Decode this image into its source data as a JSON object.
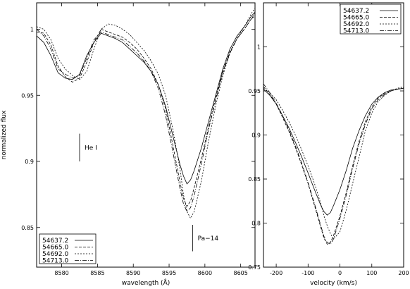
{
  "chart_data": [
    {
      "type": "line",
      "xlabel": "wavelength (Å)",
      "ylabel": "normalized flux",
      "xlim": [
        8576.5,
        8607
      ],
      "ylim": [
        0.82,
        1.02
      ],
      "xticks": [
        "8580",
        "8585",
        "8590",
        "8595",
        "8600",
        "8605"
      ],
      "yticks": [
        "0.85",
        "0.9",
        "0.95",
        "1"
      ],
      "legend": {
        "placement": "bottom-left",
        "entries": [
          "54637.2",
          "54665.0",
          "54692.0",
          "54713.0"
        ]
      },
      "annotations": [
        {
          "text": "He I",
          "x": 8582.5,
          "y_top": 0.921,
          "y_bottom": 0.9
        },
        {
          "text": "Pa−14",
          "x": 8598.3,
          "y_top": 0.852,
          "y_bottom": 0.832
        }
      ],
      "series": [
        {
          "name": "54637.2",
          "x": [
            8576.5,
            8577.5,
            8578.5,
            8579.5,
            8580.5,
            8581.5,
            8582.5,
            8583.5,
            8584.5,
            8585.5,
            8586.5,
            8587.5,
            8588.5,
            8589.5,
            8590.5,
            8591.5,
            8592.5,
            8593.5,
            8594.5,
            8595.5,
            8596.5,
            8597.0,
            8597.5,
            8598.0,
            8598.5,
            8599.5,
            8600.5,
            8601.5,
            8602.5,
            8603.5,
            8604.5,
            8605.5,
            8606.5,
            8607
          ],
          "y": [
            0.995,
            0.99,
            0.98,
            0.967,
            0.963,
            0.962,
            0.966,
            0.98,
            0.99,
            0.997,
            0.995,
            0.993,
            0.99,
            0.985,
            0.98,
            0.975,
            0.968,
            0.958,
            0.942,
            0.92,
            0.898,
            0.889,
            0.883,
            0.886,
            0.893,
            0.91,
            0.93,
            0.95,
            0.97,
            0.985,
            0.995,
            1.002,
            1.01,
            1.013
          ]
        },
        {
          "name": "54665.0",
          "x": [
            8576.5,
            8577.5,
            8578.5,
            8579.5,
            8580.5,
            8581.5,
            8582.5,
            8583.5,
            8584.5,
            8585.5,
            8586.5,
            8587.5,
            8588.5,
            8589.5,
            8590.5,
            8591.5,
            8592.5,
            8593.5,
            8594.5,
            8595.5,
            8596.5,
            8597.0,
            8597.5,
            8598.0,
            8598.5,
            8599.5,
            8600.5,
            8601.5,
            8602.5,
            8603.5,
            8604.5,
            8605.5,
            8606.5,
            8607
          ],
          "y": [
            0.998,
            0.997,
            0.988,
            0.972,
            0.964,
            0.96,
            0.963,
            0.975,
            0.99,
            1.0,
            0.998,
            0.996,
            0.994,
            0.99,
            0.985,
            0.978,
            0.97,
            0.958,
            0.94,
            0.913,
            0.885,
            0.872,
            0.866,
            0.87,
            0.88,
            0.902,
            0.926,
            0.948,
            0.968,
            0.983,
            0.993,
            1.0,
            1.008,
            1.012
          ]
        },
        {
          "name": "54692.0",
          "x": [
            8576.5,
            8577.5,
            8578.5,
            8579.5,
            8580.5,
            8581.5,
            8582.5,
            8583.5,
            8584.5,
            8585.5,
            8586.5,
            8587.5,
            8588.5,
            8589.5,
            8590.5,
            8591.5,
            8592.5,
            8593.5,
            8594.5,
            8595.5,
            8596.5,
            8597.0,
            8597.5,
            8598.0,
            8598.5,
            8599.5,
            8600.5,
            8601.5,
            8602.5,
            8603.5,
            8604.5,
            8605.5,
            8606.5,
            8607
          ],
          "y": [
            1.002,
            1.0,
            0.992,
            0.978,
            0.97,
            0.965,
            0.962,
            0.968,
            0.985,
            1.0,
            1.004,
            1.003,
            1.0,
            0.996,
            0.99,
            0.984,
            0.976,
            0.966,
            0.95,
            0.925,
            0.895,
            0.875,
            0.862,
            0.857,
            0.862,
            0.885,
            0.915,
            0.942,
            0.965,
            0.982,
            0.993,
            1.002,
            1.012,
            1.016
          ]
        },
        {
          "name": "54713.0",
          "x": [
            8576.5,
            8577.5,
            8578.5,
            8579.5,
            8580.5,
            8581.5,
            8582.5,
            8583.5,
            8584.5,
            8585.5,
            8586.5,
            8587.5,
            8588.5,
            8589.5,
            8590.5,
            8591.5,
            8592.5,
            8593.5,
            8594.5,
            8595.5,
            8596.5,
            8597.0,
            8597.5,
            8598.0,
            8598.5,
            8599.5,
            8600.5,
            8601.5,
            8602.5,
            8603.5,
            8604.5,
            8605.5,
            8606.5,
            8607
          ],
          "y": [
            1.0,
            0.995,
            0.985,
            0.97,
            0.966,
            0.963,
            0.965,
            0.978,
            0.992,
            0.998,
            0.996,
            0.994,
            0.992,
            0.987,
            0.982,
            0.976,
            0.968,
            0.955,
            0.935,
            0.908,
            0.88,
            0.868,
            0.862,
            0.865,
            0.874,
            0.898,
            0.924,
            0.946,
            0.967,
            0.982,
            0.993,
            1.0,
            1.008,
            1.01
          ]
        }
      ]
    },
    {
      "type": "line",
      "xlabel": "velocity (km/s)",
      "ylabel": "",
      "xlim": [
        -240,
        200
      ],
      "ylim": [
        0.75,
        1.05
      ],
      "xticks": [
        "-200",
        "-100",
        "0",
        "100",
        "200"
      ],
      "yticks": [
        "0.75",
        "0.8",
        "0.85",
        "0.9",
        "0.95",
        "1"
      ],
      "legend": {
        "placement": "top-right",
        "entries": [
          "54637.2",
          "54665.0",
          "54692.0",
          "54713.0"
        ]
      },
      "series": [
        {
          "name": "54637.2",
          "x": [
            -240,
            -220,
            -200,
            -180,
            -160,
            -140,
            -120,
            -100,
            -80,
            -60,
            -50,
            -40,
            -30,
            -20,
            0,
            20,
            40,
            60,
            80,
            100,
            120,
            140,
            160,
            180,
            200
          ],
          "y": [
            0.952,
            0.945,
            0.935,
            0.922,
            0.908,
            0.892,
            0.875,
            0.857,
            0.838,
            0.82,
            0.813,
            0.809,
            0.812,
            0.82,
            0.838,
            0.86,
            0.885,
            0.905,
            0.922,
            0.935,
            0.943,
            0.948,
            0.951,
            0.952,
            0.953
          ]
        },
        {
          "name": "54665.0",
          "x": [
            -240,
            -220,
            -200,
            -180,
            -160,
            -140,
            -120,
            -100,
            -80,
            -60,
            -50,
            -40,
            -30,
            -20,
            0,
            20,
            40,
            60,
            80,
            100,
            120,
            140,
            160,
            180,
            200
          ],
          "y": [
            0.955,
            0.946,
            0.935,
            0.92,
            0.904,
            0.886,
            0.866,
            0.845,
            0.82,
            0.795,
            0.783,
            0.776,
            0.778,
            0.786,
            0.808,
            0.835,
            0.865,
            0.893,
            0.915,
            0.932,
            0.942,
            0.947,
            0.95,
            0.952,
            0.953
          ]
        },
        {
          "name": "54692.0",
          "x": [
            -240,
            -220,
            -200,
            -180,
            -160,
            -140,
            -120,
            -100,
            -80,
            -60,
            -50,
            -40,
            -30,
            -20,
            0,
            20,
            40,
            60,
            80,
            100,
            120,
            140,
            160,
            180,
            200
          ],
          "y": [
            0.953,
            0.948,
            0.94,
            0.928,
            0.915,
            0.9,
            0.883,
            0.865,
            0.845,
            0.822,
            0.808,
            0.797,
            0.788,
            0.782,
            0.79,
            0.815,
            0.845,
            0.875,
            0.905,
            0.925,
            0.938,
            0.945,
            0.95,
            0.953,
            0.955
          ]
        },
        {
          "name": "54713.0",
          "x": [
            -240,
            -220,
            -200,
            -180,
            -160,
            -140,
            -120,
            -100,
            -80,
            -60,
            -50,
            -40,
            -30,
            -20,
            0,
            20,
            40,
            60,
            80,
            100,
            120,
            140,
            160,
            180,
            200
          ],
          "y": [
            0.958,
            0.948,
            0.936,
            0.922,
            0.906,
            0.888,
            0.868,
            0.846,
            0.822,
            0.797,
            0.785,
            0.778,
            0.776,
            0.782,
            0.805,
            0.832,
            0.862,
            0.89,
            0.912,
            0.93,
            0.94,
            0.946,
            0.95,
            0.952,
            0.954
          ]
        }
      ]
    }
  ]
}
